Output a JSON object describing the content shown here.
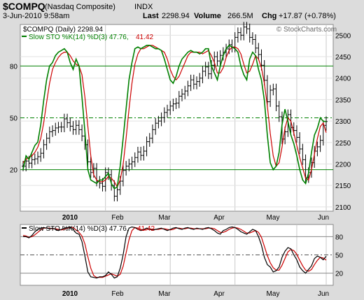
{
  "header": {
    "ticker": "$COMPQ",
    "name": "(Nasdaq Composite)",
    "exchange": "INDX",
    "date_time": "3-Jun-2010 9:58am",
    "last_label": "Last",
    "last_value": "2298.94",
    "volume_label": "Volume",
    "volume_value": "266.5M",
    "chg_label": "Chg",
    "chg_value": "+17.87 (+0.78%)"
  },
  "watermark": "© StockCharts.com",
  "legend": {
    "ohlc_text": "$COMPQ (Daily) 2298.94",
    "sto_text": "Slow STO %K(14) %D(3) 47.76,",
    "sto_d_value": "41.42",
    "lower_text": "Slow STO %K(14) %D(3) 47.76,",
    "lower_d_value": "41.42"
  },
  "colors": {
    "k_line": "#008000",
    "d_line": "#cc0000",
    "lower_k_line": "#000000",
    "lower_d_line": "#cc0000",
    "bars": "#000000",
    "level_line": "#008000",
    "panel_bg": "#ffffff"
  },
  "chart_data": [
    {
      "type": "line",
      "panel": "main",
      "title": "$COMPQ (Daily) 2298.94",
      "price_axis": {
        "ticks": [
          2100,
          2150,
          2200,
          2250,
          2300,
          2350,
          2400,
          2450,
          2500
        ],
        "range": [
          2090,
          2525
        ]
      },
      "sto_axis": {
        "ticks": [
          20,
          50,
          80
        ],
        "range": [
          0,
          100
        ]
      },
      "month_labels": [
        "2010",
        "Feb",
        "Mar",
        "Apr",
        "May",
        "Jun"
      ],
      "reference_lines": [
        20,
        50,
        80
      ],
      "series": [
        {
          "name": "$COMPQ (Daily)",
          "kind": "ohlc",
          "close": [
            2195,
            2207,
            2202,
            2210,
            2212,
            2217,
            2225,
            2245,
            2260,
            2275,
            2278,
            2284,
            2286,
            2286,
            2305,
            2296,
            2288,
            2280,
            2290,
            2280,
            2265,
            2245,
            2205,
            2180,
            2190,
            2160,
            2155,
            2148,
            2180,
            2175,
            2150,
            2125,
            2140,
            2160,
            2185,
            2195,
            2200,
            2205,
            2215,
            2228,
            2220,
            2230,
            2252,
            2260,
            2280,
            2295,
            2300,
            2308,
            2320,
            2326,
            2335,
            2340,
            2342,
            2358,
            2363,
            2370,
            2382,
            2396,
            2386,
            2392,
            2400,
            2416,
            2426,
            2410,
            2430,
            2450,
            2440,
            2453,
            2460,
            2468,
            2478,
            2472,
            2495,
            2506,
            2500,
            2519,
            2515,
            2495,
            2490,
            2470,
            2455,
            2430,
            2395,
            2345,
            2372,
            2375,
            2335,
            2310,
            2258,
            2275,
            2315,
            2285,
            2278,
            2262,
            2235,
            2210,
            2168,
            2180,
            2203,
            2230,
            2240,
            2255,
            2290,
            2298.94
          ]
        },
        {
          "name": "Slow STO %K(14)",
          "kind": "stochastic_k",
          "values": [
            20,
            28,
            26,
            30,
            34,
            36,
            46,
            60,
            72,
            80,
            82,
            86,
            88,
            89,
            90,
            88,
            82,
            78,
            84,
            80,
            62,
            42,
            20,
            14,
            13,
            12,
            14,
            14,
            16,
            18,
            12,
            9,
            10,
            22,
            38,
            55,
            72,
            82,
            90,
            91,
            90,
            91,
            92,
            92,
            91,
            90,
            90,
            89,
            84,
            78,
            72,
            70,
            74,
            80,
            84,
            86,
            88,
            89,
            88,
            88,
            87,
            88,
            90,
            90,
            80,
            76,
            72,
            80,
            86,
            90,
            92,
            91,
            90,
            88,
            80,
            75,
            72,
            84,
            88,
            86,
            78,
            72,
            60,
            40,
            24,
            20,
            22,
            30,
            46,
            55,
            48,
            40,
            35,
            28,
            20,
            14,
            12,
            18,
            30,
            40,
            44,
            50,
            48,
            47.76
          ]
        },
        {
          "name": "%D(3)",
          "kind": "stochastic_d",
          "values": [
            24,
            26,
            27,
            28,
            30,
            33,
            38,
            47,
            59,
            70,
            78,
            82,
            85,
            87,
            88,
            88,
            86,
            83,
            81,
            80,
            75,
            62,
            45,
            28,
            17,
            14,
            13,
            13,
            14,
            16,
            15,
            13,
            10,
            14,
            23,
            38,
            55,
            70,
            81,
            87,
            90,
            90,
            91,
            92,
            92,
            91,
            90,
            89,
            88,
            84,
            78,
            74,
            72,
            74,
            78,
            82,
            86,
            88,
            88,
            88,
            88,
            87,
            88,
            89,
            86,
            82,
            76,
            76,
            79,
            85,
            89,
            91,
            91,
            90,
            87,
            81,
            76,
            77,
            81,
            86,
            84,
            79,
            70,
            57,
            41,
            28,
            22,
            24,
            33,
            44,
            50,
            48,
            41,
            34,
            27,
            21,
            15,
            14,
            20,
            29,
            38,
            45,
            47,
            41.42
          ]
        }
      ]
    },
    {
      "type": "line",
      "panel": "lower",
      "title": "Slow STO %K(14) %D(3) 47.76, 41.42",
      "axis": {
        "ticks": [
          20,
          50,
          80
        ],
        "range": [
          0,
          100
        ]
      },
      "reference_lines": [
        20,
        50,
        80
      ],
      "series": [
        {
          "name": "Slow STO %K(14)",
          "values": [
            80,
            80,
            78,
            82,
            88,
            92,
            94,
            95,
            94,
            93,
            94,
            92,
            90,
            92,
            94,
            95,
            96,
            92,
            86,
            84,
            72,
            48,
            22,
            14,
            13,
            12,
            14,
            14,
            16,
            22,
            18,
            12,
            14,
            28,
            50,
            80,
            94,
            96,
            95,
            92,
            90,
            92,
            94,
            92,
            91,
            92,
            93,
            94,
            92,
            90,
            92,
            94,
            95,
            93,
            92,
            94,
            95,
            93,
            92,
            94,
            93,
            92,
            94,
            95,
            93,
            90,
            86,
            84,
            90,
            92,
            95,
            96,
            95,
            92,
            88,
            86,
            84,
            88,
            92,
            90,
            80,
            66,
            46,
            34,
            30,
            22,
            24,
            30,
            46,
            56,
            62,
            60,
            50,
            42,
            30,
            24,
            20,
            26,
            32,
            44,
            48,
            46,
            42,
            47.76
          ]
        },
        {
          "name": "%D(3)",
          "values": [
            82,
            81,
            79,
            80,
            83,
            87,
            91,
            94,
            94,
            94,
            93,
            93,
            92,
            91,
            92,
            94,
            95,
            95,
            91,
            87,
            81,
            68,
            47,
            28,
            16,
            13,
            13,
            13,
            15,
            17,
            19,
            17,
            15,
            18,
            31,
            53,
            75,
            90,
            95,
            94,
            92,
            91,
            92,
            93,
            92,
            92,
            92,
            93,
            93,
            92,
            91,
            92,
            94,
            94,
            93,
            93,
            94,
            94,
            93,
            93,
            93,
            93,
            93,
            94,
            94,
            93,
            90,
            87,
            87,
            89,
            92,
            94,
            95,
            94,
            92,
            89,
            86,
            86,
            88,
            90,
            87,
            79,
            64,
            49,
            37,
            29,
            25,
            25,
            33,
            44,
            55,
            59,
            57,
            51,
            41,
            32,
            25,
            23,
            26,
            34,
            41,
            46,
            45,
            41.42
          ]
        }
      ]
    }
  ]
}
